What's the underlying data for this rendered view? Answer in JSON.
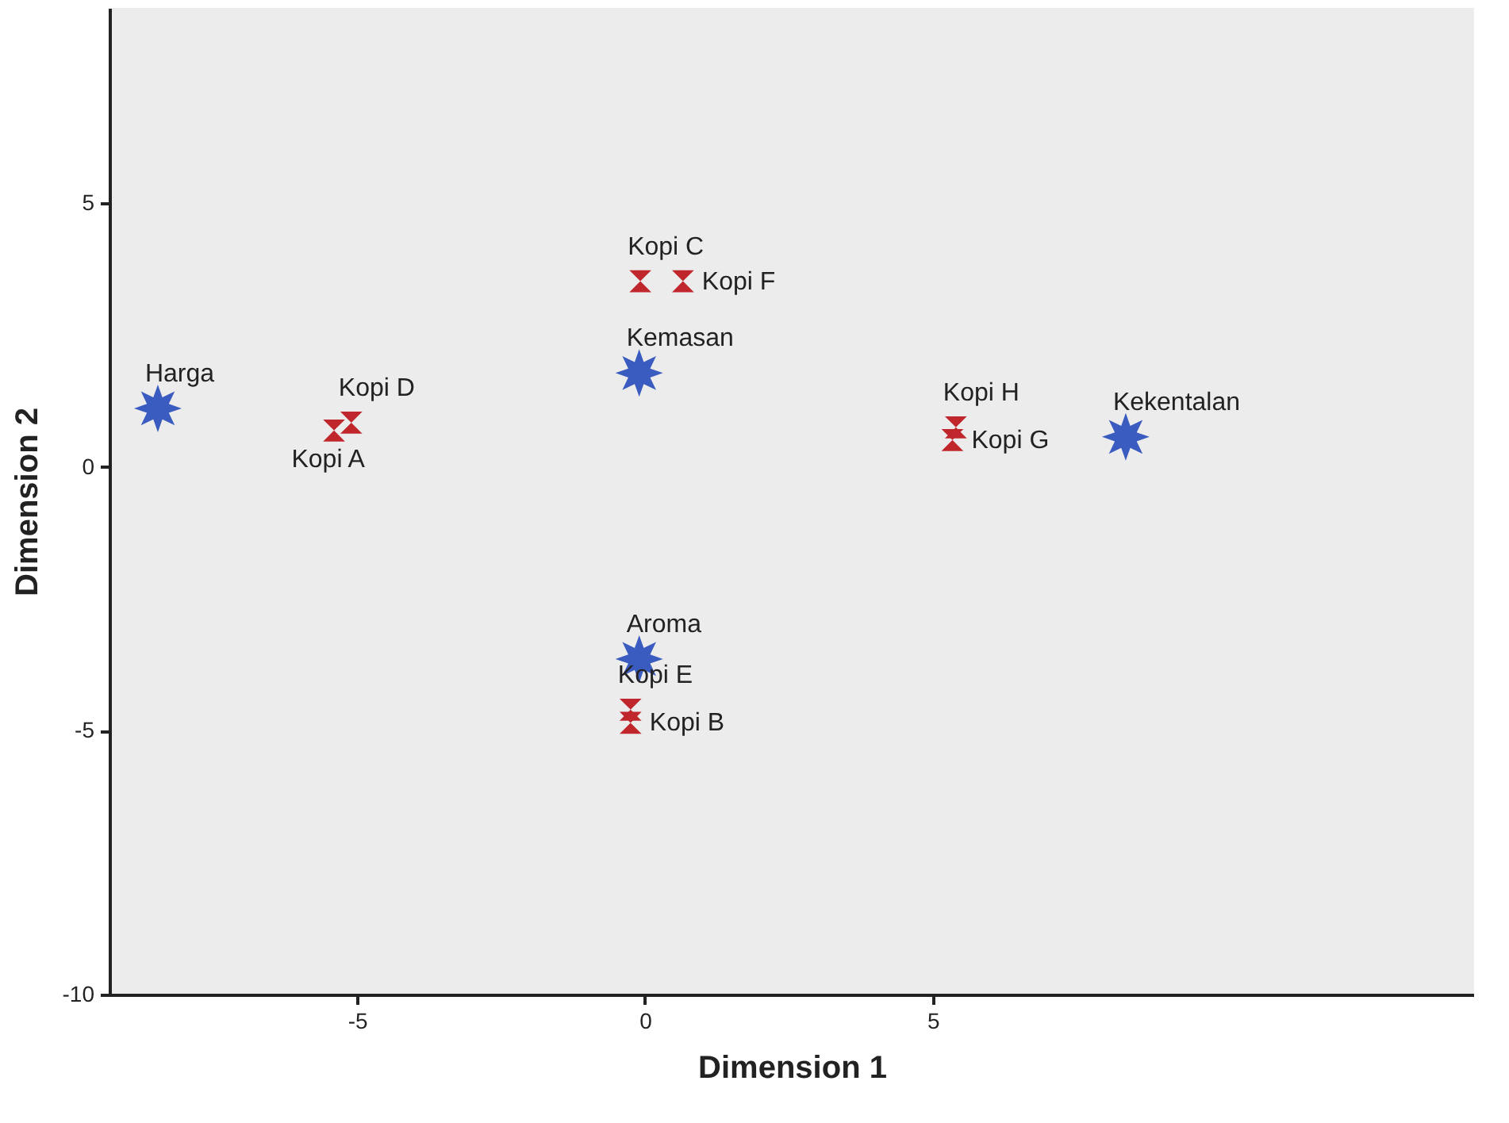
{
  "chart_data": {
    "type": "scatter",
    "xlabel": "Dimension 1",
    "ylabel": "Dimension 2",
    "xlim": [
      -9.3,
      14.4
    ],
    "ylim": [
      -10,
      8.7
    ],
    "xticks": [
      -5,
      0,
      5
    ],
    "yticks": [
      -10,
      -5,
      0,
      5
    ],
    "grid": false,
    "series": [
      {
        "color": "#c0272d",
        "marker": "triangle",
        "x": [
          -5.4,
          -0.25,
          -0.08,
          -5.1,
          -0.25,
          0.66,
          5.34,
          5.4
        ],
        "values": [
          0.69,
          -4.85,
          3.52,
          0.84,
          -4.6,
          3.52,
          0.51,
          0.75
        ]
      },
      {
        "color": "#3a5bbf",
        "marker": "star",
        "x": [
          -8.46,
          -0.1,
          8.35,
          -0.1
        ],
        "values": [
          1.11,
          1.78,
          0.57,
          -3.64
        ]
      }
    ],
    "annotations": [
      {
        "text": "Kopi A",
        "x": -5.4,
        "y": 0.69
      },
      {
        "text": "Kopi B",
        "x": -0.25,
        "y": -4.85
      },
      {
        "text": "Kopi C",
        "x": -0.08,
        "y": 3.52
      },
      {
        "text": "Kopi D",
        "x": -5.1,
        "y": 0.84
      },
      {
        "text": "Kopi E",
        "x": -0.25,
        "y": -4.6
      },
      {
        "text": "Kopi F",
        "x": 0.66,
        "y": 3.52
      },
      {
        "text": "Kopi G",
        "x": 5.34,
        "y": 0.51
      },
      {
        "text": "Kopi H",
        "x": 5.4,
        "y": 0.75
      },
      {
        "text": "Harga",
        "x": -8.46,
        "y": 1.11
      },
      {
        "text": "Kemasan",
        "x": -0.1,
        "y": 1.78
      },
      {
        "text": "Kekentalan",
        "x": 8.35,
        "y": 0.57
      },
      {
        "text": "Aroma",
        "x": -0.1,
        "y": -3.64
      }
    ]
  }
}
